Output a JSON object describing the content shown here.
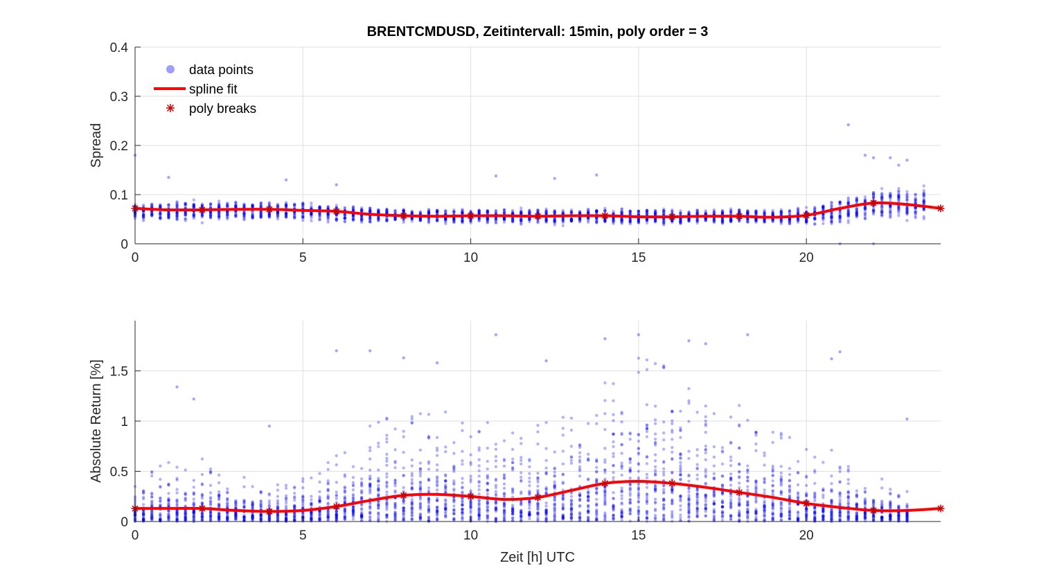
{
  "chart_data": [
    {
      "type": "scatter",
      "title": "BRENTCMDUSD, Zeitintervall: 15min, poly order = 3",
      "xlabel": "",
      "ylabel": "Spread",
      "xlim": [
        0,
        24
      ],
      "ylim": [
        0,
        0.4
      ],
      "xticks": [
        "0",
        "5",
        "10",
        "15",
        "20"
      ],
      "yticks": [
        "0",
        "0.1",
        "0.2",
        "0.3",
        "0.4"
      ],
      "grid": true,
      "legend_position": "top-left",
      "legend": [
        "data points",
        "spline fit",
        "poly breaks"
      ],
      "colors": {
        "points": "#0000ff",
        "fit": "#ff0000",
        "breaks": "#cc0000"
      },
      "fit_x": [
        0,
        1,
        2,
        3,
        4,
        5,
        6,
        7,
        8,
        9,
        10,
        11,
        12,
        13,
        14,
        15,
        16,
        17,
        18,
        19,
        20,
        21,
        22,
        23,
        24
      ],
      "fit_y": [
        0.072,
        0.069,
        0.069,
        0.07,
        0.07,
        0.068,
        0.066,
        0.06,
        0.057,
        0.056,
        0.057,
        0.057,
        0.056,
        0.057,
        0.057,
        0.055,
        0.055,
        0.056,
        0.056,
        0.054,
        0.058,
        0.072,
        0.083,
        0.08,
        0.072
      ],
      "breaks_x": [
        0,
        2,
        4,
        6,
        8,
        10,
        12,
        14,
        16,
        18,
        20,
        22,
        24
      ],
      "breaks_y": [
        0.072,
        0.069,
        0.07,
        0.066,
        0.057,
        0.057,
        0.056,
        0.057,
        0.055,
        0.056,
        0.058,
        0.083,
        0.072
      ],
      "points_stats": {
        "x_start": 0,
        "x_end": 23.6,
        "x_step": 0.25,
        "median": [
          0.065,
          0.065,
          0.068,
          0.067,
          0.067,
          0.066,
          0.062,
          0.058,
          0.057,
          0.056,
          0.056,
          0.056,
          0.056,
          0.056,
          0.056,
          0.055,
          0.055,
          0.055,
          0.055,
          0.055,
          0.058,
          0.068,
          0.082,
          0.08
        ],
        "spread": [
          0.025,
          0.03,
          0.028,
          0.028,
          0.03,
          0.028,
          0.026,
          0.024,
          0.022,
          0.022,
          0.022,
          0.022,
          0.022,
          0.022,
          0.022,
          0.022,
          0.022,
          0.022,
          0.022,
          0.022,
          0.025,
          0.04,
          0.05,
          0.05
        ]
      },
      "outliers": [
        [
          21.25,
          0.242
        ],
        [
          1.0,
          0.135
        ],
        [
          10.75,
          0.138
        ],
        [
          12.5,
          0.133
        ],
        [
          13.75,
          0.14
        ],
        [
          21.75,
          0.18
        ],
        [
          22.0,
          0.175
        ],
        [
          22.5,
          0.175
        ],
        [
          22.75,
          0.16
        ],
        [
          23.0,
          0.17
        ],
        [
          21.0,
          0.0
        ],
        [
          22.0,
          0.0
        ],
        [
          0.0,
          0.18
        ],
        [
          4.5,
          0.13
        ],
        [
          6.0,
          0.12
        ]
      ]
    },
    {
      "type": "scatter",
      "title": "",
      "xlabel": "Zeit [h] UTC",
      "ylabel": "Absolute Return [%]",
      "xlim": [
        0,
        24
      ],
      "ylim": [
        0,
        2.0
      ],
      "xticks": [
        "0",
        "5",
        "10",
        "15",
        "20"
      ],
      "yticks": [
        "0",
        "0.5",
        "1",
        "1.5"
      ],
      "grid": true,
      "colors": {
        "points": "#0000ff",
        "fit": "#ff0000",
        "breaks": "#cc0000"
      },
      "fit_x": [
        0,
        1,
        2,
        3,
        4,
        5,
        6,
        7,
        8,
        9,
        10,
        11,
        12,
        13,
        14,
        15,
        16,
        17,
        18,
        19,
        20,
        21,
        22,
        23,
        24
      ],
      "fit_y": [
        0.13,
        0.13,
        0.13,
        0.11,
        0.1,
        0.11,
        0.15,
        0.21,
        0.26,
        0.27,
        0.25,
        0.22,
        0.24,
        0.31,
        0.38,
        0.4,
        0.38,
        0.34,
        0.29,
        0.24,
        0.18,
        0.14,
        0.11,
        0.11,
        0.13
      ],
      "breaks_x": [
        0,
        2,
        4,
        6,
        8,
        10,
        12,
        14,
        16,
        18,
        20,
        22,
        24
      ],
      "breaks_y": [
        0.13,
        0.13,
        0.1,
        0.15,
        0.26,
        0.25,
        0.24,
        0.38,
        0.38,
        0.29,
        0.18,
        0.11,
        0.13
      ],
      "points_stats": {
        "x_start": 0,
        "x_end": 23.0,
        "x_step": 0.25,
        "scale": [
          0.12,
          0.18,
          0.16,
          0.14,
          0.12,
          0.13,
          0.2,
          0.28,
          0.33,
          0.33,
          0.3,
          0.28,
          0.3,
          0.36,
          0.45,
          0.5,
          0.48,
          0.4,
          0.34,
          0.28,
          0.22,
          0.17,
          0.14,
          0.1
        ]
      },
      "outliers": [
        [
          10.75,
          1.86
        ],
        [
          15.0,
          1.86
        ],
        [
          18.25,
          1.86
        ],
        [
          14.0,
          1.82
        ],
        [
          16.5,
          1.8
        ],
        [
          6.0,
          1.7
        ],
        [
          7.0,
          1.7
        ],
        [
          9.0,
          1.58
        ],
        [
          17.0,
          1.77
        ],
        [
          21.0,
          1.69
        ],
        [
          1.25,
          1.34
        ],
        [
          1.75,
          1.22
        ],
        [
          8.0,
          1.63
        ],
        [
          12.25,
          1.6
        ],
        [
          20.75,
          1.62
        ],
        [
          4.0,
          0.95
        ],
        [
          23.0,
          1.02
        ]
      ]
    }
  ]
}
